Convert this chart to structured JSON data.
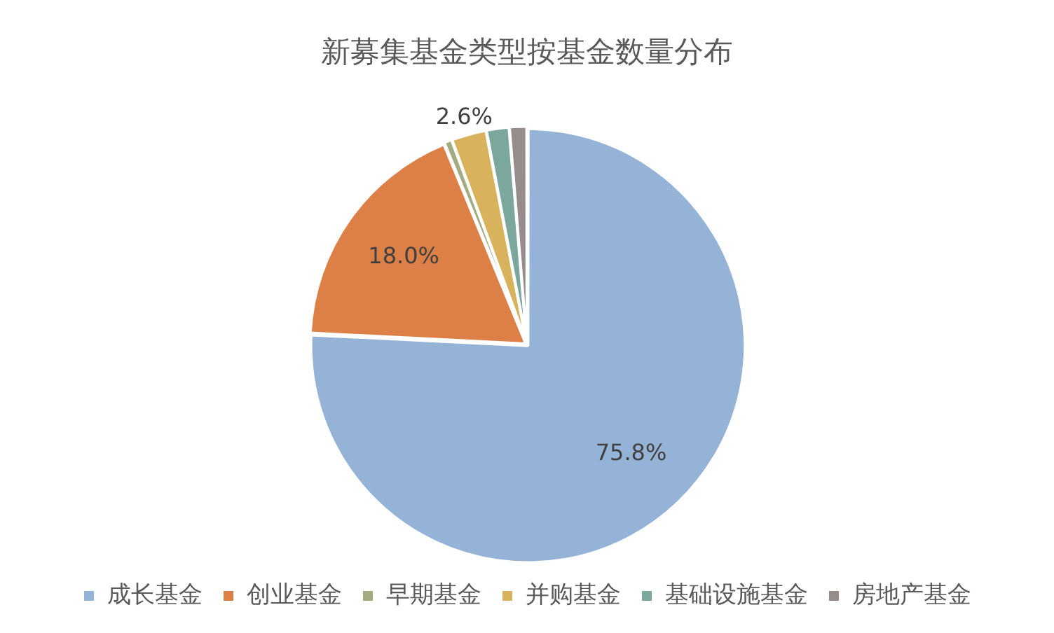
{
  "chart_data": {
    "type": "pie",
    "title": "新募集基金类型按基金数量分布",
    "categories": [
      "成长基金",
      "创业基金",
      "早期基金",
      "并购基金",
      "基础设施基金",
      "房地产基金"
    ],
    "values": [
      75.8,
      18.0,
      0.6,
      2.6,
      1.7,
      1.3
    ],
    "colors": [
      "#95b3d7",
      "#dd8047",
      "#a5ab81",
      "#d8b25c",
      "#7ba79d",
      "#968c8c"
    ],
    "value_labels": [
      "75.8%",
      "18.0%",
      null,
      "2.6%",
      null,
      null
    ],
    "legend": "bottom"
  }
}
